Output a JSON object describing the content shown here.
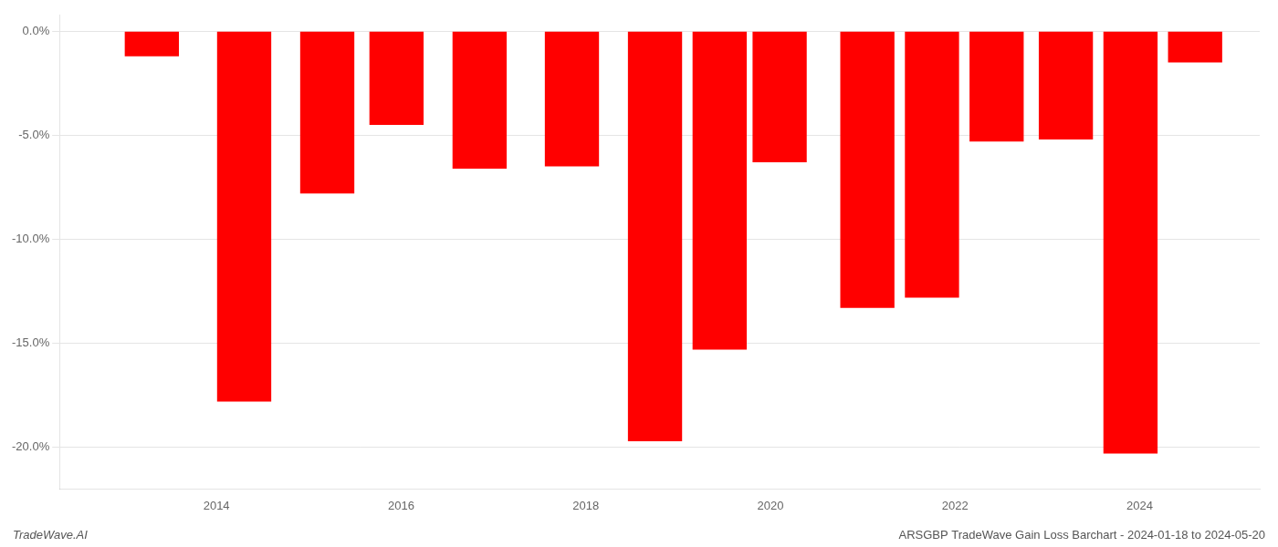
{
  "chart_data": {
    "type": "bar",
    "x": [
      2013.3,
      2014.3,
      2015.2,
      2015.95,
      2016.85,
      2017.85,
      2018.75,
      2019.45,
      2020.1,
      2021.05,
      2021.75,
      2022.45,
      2023.2,
      2023.9,
      2024.6
    ],
    "values": [
      -1.2,
      -17.8,
      -7.8,
      -4.5,
      -6.6,
      -6.5,
      -19.7,
      -15.3,
      -6.3,
      -13.3,
      -12.8,
      -5.3,
      -5.2,
      -20.3,
      -1.5
    ],
    "color": "#ff0000",
    "xlim": [
      2012.3,
      2025.3
    ],
    "xticks": [
      2014,
      2016,
      2018,
      2020,
      2022,
      2024
    ],
    "ylim": [
      -22.0,
      0.8
    ],
    "yticks": [
      {
        "value": 0.0,
        "label": "0.0%"
      },
      {
        "value": -5.0,
        "label": "-5.0%"
      },
      {
        "value": -10.0,
        "label": "-10.0%"
      },
      {
        "value": -15.0,
        "label": "-15.0%"
      },
      {
        "value": -20.0,
        "label": "-20.0%"
      }
    ],
    "grid": true,
    "annotations": [
      "TradeWave.AI",
      "ARSGBP TradeWave Gain Loss Barchart - 2024-01-18 to 2024-05-20"
    ]
  }
}
